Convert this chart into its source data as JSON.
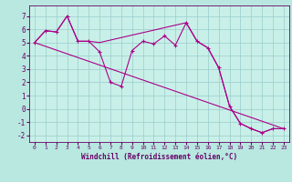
{
  "xlabel": "Windchill (Refroidissement éolien,°C)",
  "background_color": "#b8e8e0",
  "plot_bg_color": "#c8f0e8",
  "line_color": "#aa0088",
  "xlim": [
    -0.5,
    23.5
  ],
  "ylim": [
    -2.5,
    7.8
  ],
  "yticks": [
    -2,
    -1,
    0,
    1,
    2,
    3,
    4,
    5,
    6,
    7
  ],
  "xticks": [
    0,
    1,
    2,
    3,
    4,
    5,
    6,
    7,
    8,
    9,
    10,
    11,
    12,
    13,
    14,
    15,
    16,
    17,
    18,
    19,
    20,
    21,
    22,
    23
  ],
  "series1_x": [
    0,
    1,
    2,
    3,
    4,
    5,
    6,
    7,
    8,
    9,
    10,
    11,
    12,
    13,
    14,
    15,
    16,
    17,
    18,
    19,
    20,
    21,
    22,
    23
  ],
  "series1_y": [
    5.0,
    5.9,
    5.8,
    7.0,
    5.1,
    5.1,
    4.3,
    2.0,
    1.7,
    4.4,
    5.1,
    4.9,
    5.5,
    4.8,
    6.5,
    5.1,
    4.6,
    3.1,
    0.2,
    -1.1,
    -1.5,
    -1.8,
    -1.5,
    -1.5
  ],
  "series2_x": [
    0,
    1,
    2,
    3,
    4,
    5,
    6,
    14,
    15,
    16,
    17,
    18,
    19,
    20,
    21,
    22,
    23
  ],
  "series2_y": [
    5.0,
    5.9,
    5.8,
    7.0,
    5.1,
    5.1,
    5.0,
    6.5,
    5.1,
    4.6,
    3.1,
    0.2,
    -1.1,
    -1.5,
    -1.8,
    -1.5,
    -1.5
  ],
  "series3_x": [
    0,
    23
  ],
  "series3_y": [
    5.0,
    -1.5
  ],
  "font_color": "#660066",
  "grid_color": "#99cccc",
  "xlabel_fontsize": 5.5,
  "tick_fontsize_x": 4.5,
  "tick_fontsize_y": 5.5
}
